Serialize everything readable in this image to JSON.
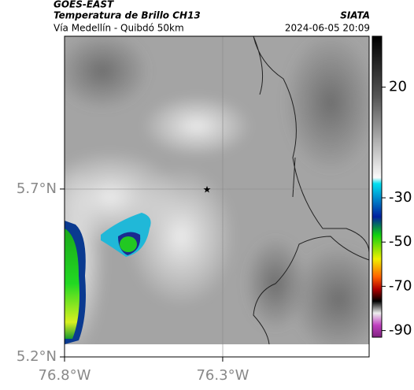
{
  "map": {
    "title": "GOES-EAST",
    "subtitle": "Temperatura de Brillo CH13",
    "source": "SIATA",
    "route": "Vía Medellín - Quibdó 50km",
    "timestamp": "2024-06-05 20:09",
    "xlim": [
      -76.8,
      -75.837
    ],
    "ylim": [
      5.2,
      6.155
    ],
    "xticks": [
      {
        "value": -76.8,
        "label": "76.8°W"
      },
      {
        "value": -76.3,
        "label": "76.3°W"
      }
    ],
    "yticks": [
      {
        "value": 5.2,
        "label": "5.2°N"
      },
      {
        "value": 5.7,
        "label": "5.7°N"
      }
    ],
    "colorbar": {
      "lim": [
        43,
        -93
      ],
      "ticks": [
        20,
        -30,
        -50,
        -70,
        -90
      ]
    }
  }
}
